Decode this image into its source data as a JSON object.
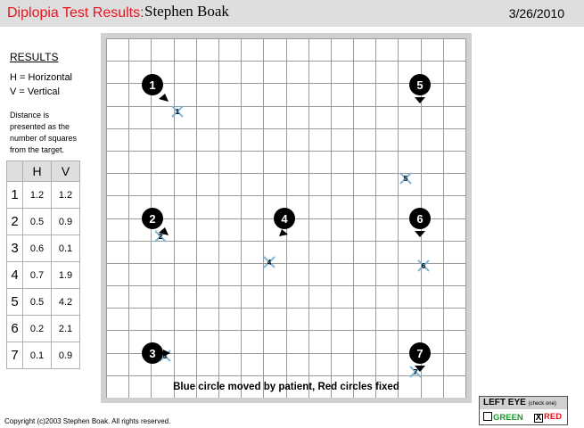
{
  "header": {
    "title": "Diplopia Test Results:",
    "patient": "Stephen Boak",
    "date": "3/26/2010"
  },
  "legend": {
    "heading": "RESULTS",
    "h_line": "H = Horizontal",
    "v_line": "V = Vertical",
    "note": "Distance is presented as the number of squares from the target."
  },
  "table": {
    "headers": [
      "",
      "H",
      "V"
    ],
    "rows": [
      {
        "n": "1",
        "h": "1.2",
        "v": "1.2"
      },
      {
        "n": "2",
        "h": "0.5",
        "v": "0.9"
      },
      {
        "n": "3",
        "h": "0.6",
        "v": "0.1"
      },
      {
        "n": "4",
        "h": "0.7",
        "v": "1.9"
      },
      {
        "n": "5",
        "h": "0.5",
        "v": "4.2"
      },
      {
        "n": "6",
        "h": "0.2",
        "v": "2.1"
      },
      {
        "n": "7",
        "h": "0.1",
        "v": "0.9"
      }
    ]
  },
  "grid": {
    "caption": "Blue circle moved by patient, Red circles fixed",
    "targets": [
      {
        "label": "1",
        "arrow": "down-right"
      },
      {
        "label": "2",
        "arrow": "down-right"
      },
      {
        "label": "3",
        "arrow": "right"
      },
      {
        "label": "4",
        "arrow": "down-left"
      },
      {
        "label": "5",
        "arrow": "down"
      },
      {
        "label": "6",
        "arrow": "down"
      },
      {
        "label": "7",
        "arrow": "down"
      }
    ],
    "marks": [
      {
        "label": "1"
      },
      {
        "label": "2"
      },
      {
        "label": "3"
      },
      {
        "label": "4"
      },
      {
        "label": "5"
      },
      {
        "label": "6"
      },
      {
        "label": "7"
      }
    ]
  },
  "eye": {
    "title": "LEFT EYE",
    "hint": "(check one)",
    "green": "GREEN",
    "red": "RED",
    "red_mark": "X",
    "green_color": "#1a9b2c",
    "red_color": "#e8141d"
  },
  "footer": {
    "copyright": "Copyright (c)2003 Stephen Boak.  All rights reserved."
  }
}
